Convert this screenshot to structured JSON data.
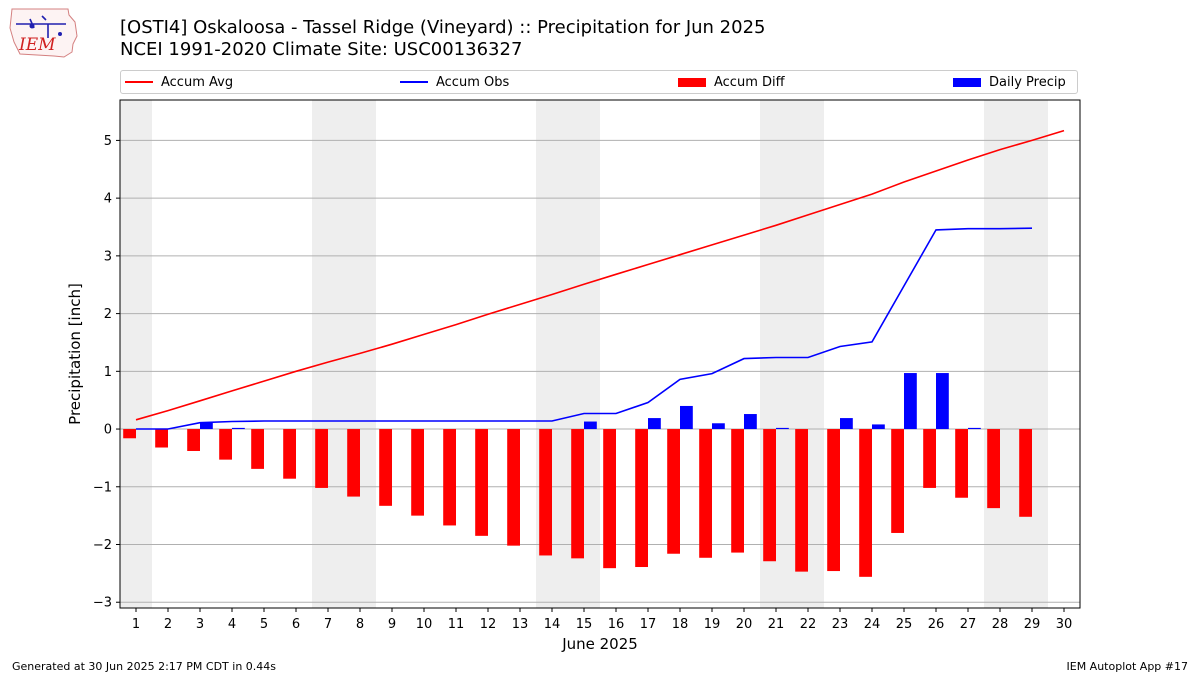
{
  "header": {
    "logo_text": "IEM",
    "title_line1": "[OSTI4] Oskaloosa - Tassel Ridge (Vineyard) :: Precipitation for Jun 2025",
    "title_line2": "NCEI 1991-2020 Climate Site: USC00136327"
  },
  "legend": {
    "accum_avg": "Accum Avg",
    "accum_obs": "Accum Obs",
    "accum_diff": "Accum Diff",
    "daily_precip": "Daily Precip",
    "placement": "top"
  },
  "footer": {
    "left": "Generated at 30 Jun 2025 2:17 PM CDT in 0.44s",
    "right": "IEM Autoplot App #17"
  },
  "colors": {
    "accum_avg": "#ff0000",
    "accum_obs": "#0000ff",
    "accum_diff": "#ff0000",
    "daily_precip": "#0000ff",
    "weekend_shade": "#eeeeee",
    "grid": "#b0b0b0"
  },
  "chart_data": {
    "type": "bar",
    "xlabel": "June 2025",
    "ylabel": "Precipitation [inch]",
    "xlim": [
      0.5,
      30.5
    ],
    "ylim": [
      -3.1,
      5.7
    ],
    "grid": "horizontal",
    "x_ticks": [
      1,
      2,
      3,
      4,
      5,
      6,
      7,
      8,
      9,
      10,
      11,
      12,
      13,
      14,
      15,
      16,
      17,
      18,
      19,
      20,
      21,
      22,
      23,
      24,
      25,
      26,
      27,
      28,
      29,
      30
    ],
    "y_ticks": [
      -3,
      -2,
      -1,
      0,
      1,
      2,
      3,
      4,
      5
    ],
    "shaded_days": [
      [
        0.5,
        1.5
      ],
      [
        6.5,
        8.5
      ],
      [
        13.5,
        15.5
      ],
      [
        20.5,
        22.5
      ],
      [
        27.5,
        29.5
      ]
    ],
    "series": [
      {
        "name": "Accum Avg",
        "type": "line",
        "x": [
          1,
          2,
          3,
          4,
          5,
          6,
          7,
          8,
          9,
          10,
          11,
          12,
          13,
          14,
          15,
          16,
          17,
          18,
          19,
          20,
          21,
          22,
          23,
          24,
          25,
          26,
          27,
          28,
          29,
          30
        ],
        "values": [
          0.16,
          0.32,
          0.49,
          0.66,
          0.83,
          1.0,
          1.16,
          1.31,
          1.47,
          1.64,
          1.81,
          1.99,
          2.16,
          2.33,
          2.51,
          2.68,
          2.85,
          3.02,
          3.19,
          3.36,
          3.53,
          3.71,
          3.89,
          4.07,
          4.28,
          4.47,
          4.66,
          4.84,
          5.0,
          5.17
        ]
      },
      {
        "name": "Accum Obs",
        "type": "line",
        "x": [
          1,
          2,
          3,
          4,
          5,
          6,
          7,
          8,
          9,
          10,
          11,
          12,
          13,
          14,
          15,
          16,
          17,
          18,
          19,
          20,
          21,
          22,
          23,
          24,
          25,
          26,
          27,
          28,
          29
        ],
        "values": [
          0.0,
          0.0,
          0.11,
          0.13,
          0.14,
          0.14,
          0.14,
          0.14,
          0.14,
          0.14,
          0.14,
          0.14,
          0.14,
          0.14,
          0.27,
          0.27,
          0.46,
          0.86,
          0.96,
          1.22,
          1.24,
          1.24,
          1.43,
          1.51,
          2.48,
          3.45,
          3.47,
          3.47,
          3.48
        ]
      },
      {
        "name": "Accum Diff",
        "type": "bar",
        "x": [
          1,
          2,
          3,
          4,
          5,
          6,
          7,
          8,
          9,
          10,
          11,
          12,
          13,
          14,
          15,
          16,
          17,
          18,
          19,
          20,
          21,
          22,
          23,
          24,
          25,
          26,
          27,
          28,
          29
        ],
        "values": [
          -0.16,
          -0.32,
          -0.38,
          -0.53,
          -0.69,
          -0.86,
          -1.02,
          -1.17,
          -1.33,
          -1.5,
          -1.67,
          -1.85,
          -2.02,
          -2.19,
          -2.24,
          -2.41,
          -2.39,
          -2.16,
          -2.23,
          -2.14,
          -2.29,
          -2.47,
          -2.46,
          -2.56,
          -1.8,
          -1.02,
          -1.19,
          -1.37,
          -1.52
        ]
      },
      {
        "name": "Daily Precip",
        "type": "bar",
        "x": [
          1,
          2,
          3,
          4,
          5,
          6,
          7,
          8,
          9,
          10,
          11,
          12,
          13,
          14,
          15,
          16,
          17,
          18,
          19,
          20,
          21,
          22,
          23,
          24,
          25,
          26,
          27,
          28,
          29
        ],
        "values": [
          0,
          0,
          0.11,
          0.02,
          0,
          0,
          0,
          0,
          0,
          0,
          0,
          0,
          0,
          0,
          0.13,
          0,
          0.19,
          0.4,
          0.1,
          0.26,
          0.02,
          0,
          0.19,
          0.08,
          0.97,
          0.97,
          0.02,
          0,
          0
        ]
      }
    ]
  }
}
